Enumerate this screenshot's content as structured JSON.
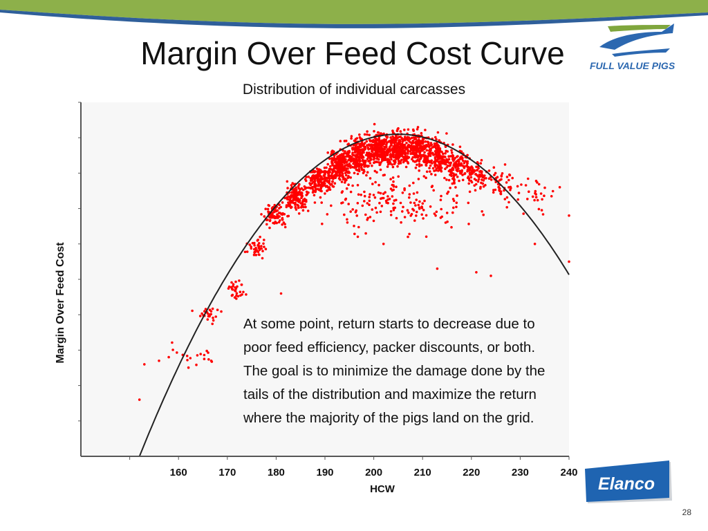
{
  "slide": {
    "title": "Margin Over Feed Cost Curve",
    "subtitle": "Distribution of individual carcasses",
    "page_number": "28",
    "annotation_lines": [
      "At some point, return starts to decrease due to",
      "poor feed efficiency, packer discounts, or both.",
      "The goal is to minimize the damage done by the",
      "tails of the distribution and maximize the return",
      "where the majority of the pigs land on the grid."
    ],
    "logos": {
      "fvp_text": "FULL VALUE PIGS",
      "elanco_text": "Elanco"
    },
    "colors": {
      "band_green": "#8db04a",
      "band_blue": "#2f5f9a",
      "points": "#ff0000",
      "curve": "#222222",
      "elanco_blue": "#1f64b1"
    }
  },
  "chart_data": {
    "type": "scatter",
    "title": "",
    "xlabel": "HCW",
    "ylabel": "Margin Over Feed Cost",
    "x_ticks": [
      160,
      170,
      180,
      190,
      200,
      210,
      220,
      230,
      240
    ],
    "xlim": [
      140,
      240
    ],
    "ylim": [
      0,
      100
    ],
    "y_tick_labels_shown": false,
    "grid": false,
    "legend": "none",
    "series": [
      {
        "kind": "points",
        "note_cluster_centers": [
          {
            "x": 163,
            "y": 28,
            "spread_x": 5,
            "spread_y": 3,
            "count": 18
          },
          {
            "x": 166,
            "y": 40,
            "spread_x": 2,
            "spread_y": 2,
            "count": 25
          },
          {
            "x": 172,
            "y": 47,
            "spread_x": 1.5,
            "spread_y": 2,
            "count": 30
          },
          {
            "x": 176,
            "y": 59,
            "spread_x": 1.5,
            "spread_y": 2,
            "count": 40
          },
          {
            "x": 180,
            "y": 68,
            "spread_x": 2,
            "spread_y": 2.5,
            "count": 80
          },
          {
            "x": 184,
            "y": 73,
            "spread_x": 2,
            "spread_y": 3,
            "count": 140
          },
          {
            "x": 189,
            "y": 78,
            "spread_x": 2,
            "spread_y": 3,
            "count": 180
          },
          {
            "x": 193,
            "y": 82,
            "spread_x": 2,
            "spread_y": 4,
            "count": 220
          },
          {
            "x": 197,
            "y": 85,
            "spread_x": 2,
            "spread_y": 4,
            "count": 240
          },
          {
            "x": 201,
            "y": 87,
            "spread_x": 2,
            "spread_y": 4,
            "count": 240
          },
          {
            "x": 205,
            "y": 87,
            "spread_x": 2,
            "spread_y": 4,
            "count": 240
          },
          {
            "x": 209,
            "y": 87,
            "spread_x": 2,
            "spread_y": 4,
            "count": 220
          },
          {
            "x": 213,
            "y": 85,
            "spread_x": 2,
            "spread_y": 4,
            "count": 170
          },
          {
            "x": 217,
            "y": 82,
            "spread_x": 2,
            "spread_y": 4,
            "count": 120
          },
          {
            "x": 221,
            "y": 80,
            "spread_x": 2,
            "spread_y": 4,
            "count": 80
          },
          {
            "x": 226,
            "y": 77,
            "spread_x": 2.5,
            "spread_y": 4,
            "count": 50
          },
          {
            "x": 233,
            "y": 74,
            "spread_x": 4,
            "spread_y": 4,
            "count": 30
          },
          {
            "x": 205,
            "y": 72,
            "spread_x": 12,
            "spread_y": 7,
            "count": 180
          }
        ],
        "outliers": [
          {
            "x": 152,
            "y": 16
          },
          {
            "x": 153,
            "y": 26
          },
          {
            "x": 156,
            "y": 27
          },
          {
            "x": 158,
            "y": 28
          },
          {
            "x": 181,
            "y": 46
          },
          {
            "x": 202,
            "y": 60
          },
          {
            "x": 207,
            "y": 62
          },
          {
            "x": 221,
            "y": 52
          },
          {
            "x": 224,
            "y": 51
          },
          {
            "x": 233,
            "y": 60
          },
          {
            "x": 240,
            "y": 55
          },
          {
            "x": 213,
            "y": 53
          },
          {
            "x": 240,
            "y": 68
          }
        ]
      },
      {
        "kind": "fit_curve",
        "shape": "parabola",
        "vertex": {
          "x": 205,
          "y": 91
        },
        "through": [
          {
            "x": 152,
            "y": 0
          },
          {
            "x": 240,
            "y": 54
          }
        ]
      }
    ]
  }
}
